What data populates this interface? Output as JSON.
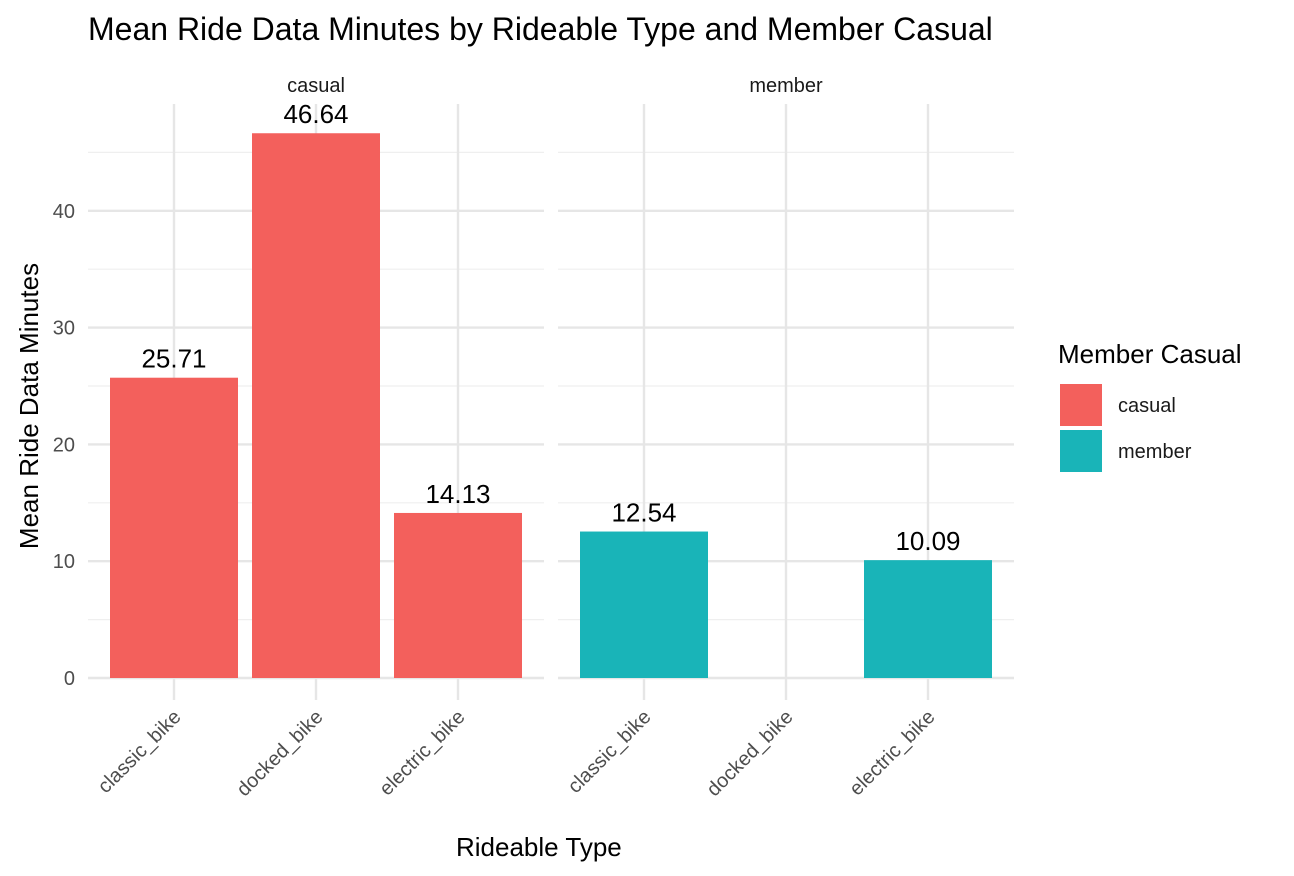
{
  "chart_data": {
    "type": "bar",
    "title": "Mean Ride Data Minutes by Rideable Type and Member Casual",
    "xlabel": "Rideable Type",
    "ylabel": "Mean Ride Data Minutes",
    "categories": [
      "classic_bike",
      "docked_bike",
      "electric_bike"
    ],
    "ylim": [
      0,
      48
    ],
    "y_ticks": [
      0,
      10,
      20,
      30,
      40
    ],
    "grid": true,
    "facets": [
      {
        "label": "casual",
        "series": "casual",
        "values": [
          25.71,
          46.64,
          14.13
        ],
        "data_labels": [
          "25.71",
          "46.64",
          "14.13"
        ]
      },
      {
        "label": "member",
        "series": "member",
        "values": [
          12.54,
          null,
          10.09
        ],
        "data_labels": [
          "12.54",
          "",
          "10.09"
        ]
      }
    ],
    "legend": {
      "title": "Member Casual",
      "position": "right",
      "items": [
        {
          "name": "casual",
          "color": "#F8766D"
        },
        {
          "name": "member",
          "color": "#00BFC4"
        }
      ]
    },
    "colors": {
      "casual": "#F3605C",
      "member": "#19B4B8"
    }
  }
}
